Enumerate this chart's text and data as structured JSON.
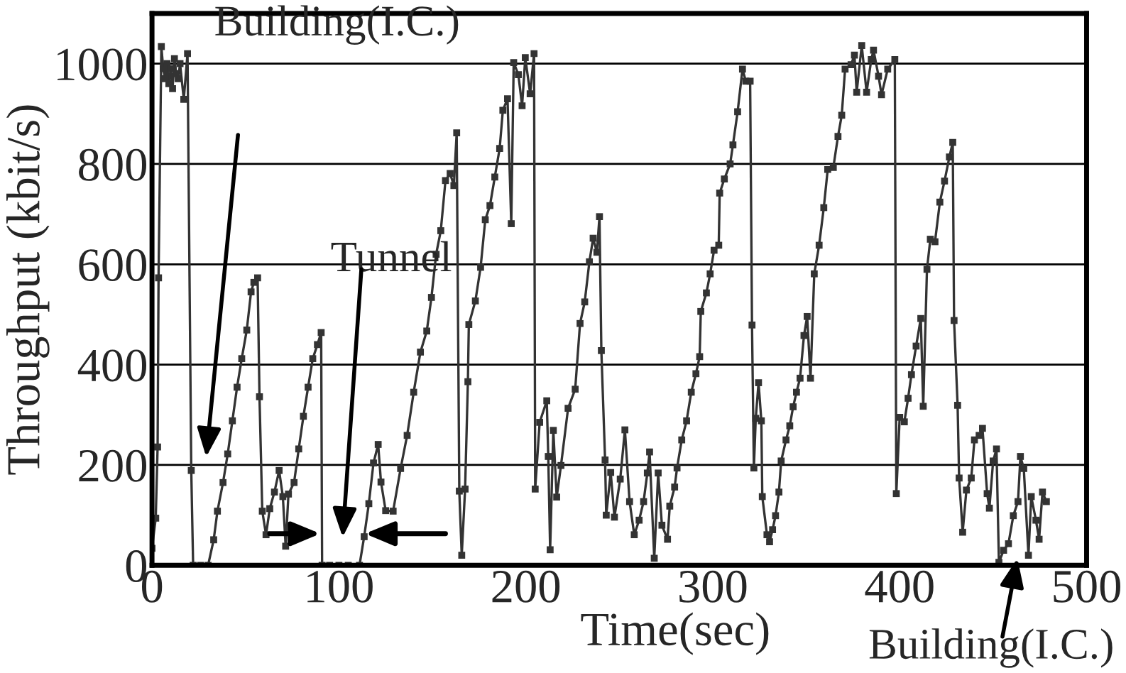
{
  "chart_data": {
    "type": "line",
    "xlabel": "Time(sec)",
    "ylabel": "Throughput (kbit/s)",
    "xlim": [
      0,
      500
    ],
    "ylim": [
      0,
      1100
    ],
    "xticks": [
      0,
      100,
      200,
      300,
      400,
      500
    ],
    "yticks": [
      0,
      200,
      400,
      600,
      800,
      1000
    ],
    "grid": "y",
    "marker": "square",
    "line_style": "solid",
    "annotations": [
      "Building(I.C.)",
      "Tunnel",
      "Building(I.C.)"
    ],
    "series": [
      {
        "color": "#333333",
        "x": [
          0,
          2,
          3,
          3.5,
          5,
          6,
          7,
          8,
          9,
          10,
          11,
          12,
          13,
          14,
          15,
          17,
          19,
          21,
          22,
          26,
          30,
          33,
          35,
          38,
          40.5,
          43,
          45.5,
          48,
          50.7,
          53,
          54.5,
          56.5,
          57.5,
          59,
          61,
          63,
          65.5,
          68,
          70,
          71.5,
          73,
          76,
          78.5,
          81,
          83.5,
          86,
          88.5,
          90.5,
          91,
          95,
          100,
          105,
          111,
          113.5,
          116,
          118.5,
          121,
          122.5,
          125,
          129,
          133,
          136.5,
          140,
          143.6,
          147,
          149.5,
          152,
          154.5,
          157,
          159.5,
          161.5,
          163,
          164.4,
          165.7,
          167.5,
          169,
          169.5,
          173,
          175.8,
          178.3,
          180.8,
          183.4,
          186,
          187.7,
          190.2,
          192.2,
          193.5,
          196,
          198,
          199.7,
          202.3,
          204.4,
          205,
          207.4,
          211.2,
          212,
          213,
          214.7,
          216.5,
          218.8,
          222.6,
          226.4,
          229,
          231.5,
          234,
          236,
          238,
          239.4,
          240.4,
          242.4,
          243,
          245.4,
          247.4,
          250.5,
          253,
          255.5,
          258,
          260.6,
          263,
          265,
          266.2,
          268.7,
          270.8,
          272.8,
          275.8,
          277,
          279.6,
          280.9,
          283.4,
          286,
          288.5,
          291,
          293,
          293.6,
          296.6,
          298.6,
          300.7,
          303.2,
          303.7,
          306.2,
          309.3,
          310.8,
          313.3,
          315.9,
          317.7,
          320,
          321,
          322,
          323,
          324.5,
          326,
          326.5,
          329,
          330.4,
          332,
          333.6,
          335.4,
          336.6,
          339.2,
          341.2,
          343,
          344.8,
          346.7,
          348.8,
          350.5,
          352.3,
          354.3,
          356.9,
          359.4,
          361.5,
          364.5,
          367,
          369,
          370.8,
          374,
          375.8,
          377,
          379.7,
          382.3,
          384.8,
          386,
          388.7,
          390.3,
          393.6,
          397.4,
          398.2,
          400,
          402.5,
          404.5,
          406.3,
          408.8,
          411.3,
          412.6,
          414.6,
          416.4,
          418.9,
          421.5,
          424,
          426.6,
          428.4,
          429.1,
          431,
          431.8,
          433.7,
          435.7,
          438.3,
          440,
          442.5,
          444.3,
          446.8,
          448,
          450,
          451.8,
          453.1,
          455.6,
          458.2,
          460.8,
          463.3,
          464.6,
          466.4,
          468.9,
          470.4,
          472.9,
          474.6,
          476.4,
          478.5
        ],
        "values": [
          34,
          94,
          236,
          573,
          1034,
          990,
          970,
          1000,
          960,
          990,
          950,
          1010,
          980,
          970,
          1000,
          929,
          1020,
          189,
          0,
          0,
          0,
          51,
          108,
          165,
          222,
          288,
          355,
          412,
          469,
          545,
          564,
          573,
          336,
          108,
          61,
          113,
          146,
          189,
          137,
          38,
          142,
          165,
          232,
          297,
          355,
          412,
          440,
          464,
          0,
          0,
          0,
          0,
          0,
          57,
          123,
          204,
          241,
          166,
          109,
          108,
          193,
          259,
          345,
          425,
          467,
          534,
          620,
          667,
          767,
          781,
          757,
          862,
          148,
          20,
          152,
          366,
          480,
          527,
          594,
          689,
          717,
          774,
          831,
          907,
          930,
          681,
          1002,
          978,
          916,
          1012,
          940,
          1020,
          152,
          285,
          328,
          217,
          31,
          269,
          136,
          199,
          313,
          351,
          482,
          525,
          605,
          652,
          624,
          695,
          428,
          210,
          100,
          185,
          96,
          172,
          270,
          127,
          61,
          90,
          127,
          184,
          226,
          14,
          184,
          80,
          52,
          118,
          156,
          194,
          250,
          288,
          345,
          382,
          416,
          506,
          543,
          581,
          628,
          638,
          742,
          770,
          800,
          838,
          904,
          989,
          965,
          965,
          479,
          194,
          293,
          364,
          288,
          137,
          61,
          47,
          71,
          99,
          146,
          208,
          250,
          278,
          316,
          345,
          373,
          458,
          496,
          373,
          581,
          638,
          713,
          789,
          793,
          855,
          897,
          989,
          998,
          1017,
          943,
          1036,
          943,
          1008,
          1027,
          975,
          938,
          989,
          1008,
          143,
          295,
          286,
          333,
          380,
          437,
          492,
          317,
          590,
          650,
          645,
          724,
          766,
          814,
          843,
          488,
          319,
          174,
          66,
          150,
          174,
          250,
          259,
          273,
          143,
          114,
          208,
          232,
          6,
          30,
          43,
          99,
          127,
          217,
          193,
          20,
          137,
          90,
          52,
          146,
          127
        ]
      }
    ]
  }
}
